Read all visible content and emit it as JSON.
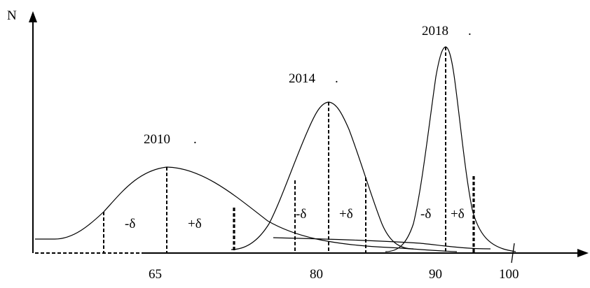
{
  "axis": {
    "y_label": "N",
    "x_ticks": [
      "65",
      "80",
      "90",
      "100"
    ]
  },
  "curves": [
    {
      "year": "2010",
      "dot": ".",
      "mean": 65,
      "minus_label": "-δ",
      "plus_label": "+δ"
    },
    {
      "year": "2014",
      "dot": ".",
      "mean": 80,
      "minus_label": "-δ",
      "plus_label": "+δ"
    },
    {
      "year": "2018",
      "dot": ".",
      "mean": 90,
      "minus_label": "-δ",
      "plus_label": "+δ"
    }
  ]
}
